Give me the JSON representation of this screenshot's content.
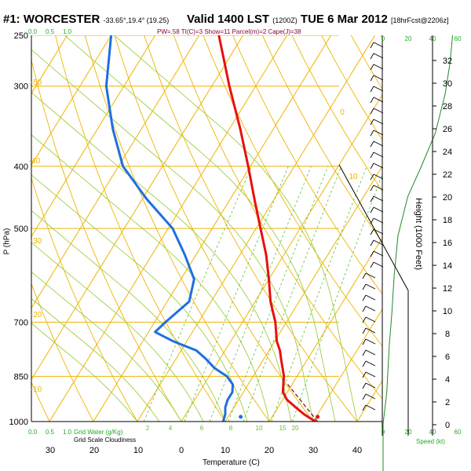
{
  "header": {
    "station": "#1: WORCESTER",
    "coords": "-33.65°,19.4° (19.25)",
    "valid": "Valid 1400 LST",
    "utc": "(1200Z)",
    "date": "TUE 6 Mar 2012",
    "run": "[18hrFcst@2206z]",
    "indices": "PW=.58 TI(C)=3 Show=11 Parcel(m)=2 Cape(J)=38"
  },
  "colors": {
    "isotherm": "#f0b400",
    "temp_curve": "#e81010",
    "dew_curve": "#1f6fe0",
    "mixing_ratio": "#5fbf2f",
    "adiabat": "#9fcf3f",
    "speed_curve": "#228b22",
    "cloudiness": "#22aa22"
  },
  "chart_data": {
    "type": "skew-t",
    "ylabel": "P (hPa)",
    "xlabel": "Temperature (C)",
    "right_ylabel": "Height (1000 Feet)",
    "speed_label": "Speed (kt)",
    "pressure_ticks": [
      250,
      300,
      400,
      500,
      700,
      850,
      1000
    ],
    "temperature_ticks": [
      30,
      20,
      10,
      0,
      10,
      20,
      30,
      40
    ],
    "height_ticks": [
      0,
      2,
      4,
      6,
      8,
      10,
      12,
      14,
      16,
      18,
      20,
      22,
      24,
      26,
      28,
      30,
      32
    ],
    "speed_ticks": [
      0,
      20,
      40,
      60
    ],
    "cloud_scale_labels": [
      "0.0",
      "0.5",
      "1.0"
    ],
    "mixing_ratio_legend": "Grid Water (g/Kg)",
    "cloud_legend": "Grid Scale Cloudiness",
    "isotherm_labels": [
      "-50",
      "-40",
      "-30",
      "-20",
      "-10",
      "0",
      "10"
    ],
    "mixing_ratio_labels": [
      "2",
      "4",
      "6",
      "8",
      "10",
      "15",
      "20"
    ],
    "temperature_profile": [
      {
        "p": 1000,
        "t": 30.5
      },
      {
        "p": 975,
        "t": 27
      },
      {
        "p": 950,
        "t": 24
      },
      {
        "p": 925,
        "t": 21
      },
      {
        "p": 900,
        "t": 19
      },
      {
        "p": 875,
        "t": 18
      },
      {
        "p": 850,
        "t": 17
      },
      {
        "p": 800,
        "t": 14
      },
      {
        "p": 775,
        "t": 12.5
      },
      {
        "p": 750,
        "t": 10.5
      },
      {
        "p": 700,
        "t": 7.5
      },
      {
        "p": 650,
        "t": 3.5
      },
      {
        "p": 600,
        "t": 0
      },
      {
        "p": 550,
        "t": -4
      },
      {
        "p": 500,
        "t": -9
      },
      {
        "p": 450,
        "t": -14.5
      },
      {
        "p": 400,
        "t": -20.5
      },
      {
        "p": 350,
        "t": -27.5
      },
      {
        "p": 300,
        "t": -36
      },
      {
        "p": 250,
        "t": -45.5
      }
    ],
    "dewpoint_profile": [
      {
        "p": 1000,
        "t": 9.5
      },
      {
        "p": 975,
        "t": 9
      },
      {
        "p": 950,
        "t": 8
      },
      {
        "p": 925,
        "t": 7.5
      },
      {
        "p": 900,
        "t": 7.5
      },
      {
        "p": 875,
        "t": 6.5
      },
      {
        "p": 850,
        "t": 4
      },
      {
        "p": 825,
        "t": 0
      },
      {
        "p": 800,
        "t": -3
      },
      {
        "p": 775,
        "t": -6.5
      },
      {
        "p": 750,
        "t": -13
      },
      {
        "p": 725,
        "t": -18.5
      },
      {
        "p": 700,
        "t": -17.5
      },
      {
        "p": 650,
        "t": -15
      },
      {
        "p": 600,
        "t": -17
      },
      {
        "p": 550,
        "t": -22.5
      },
      {
        "p": 500,
        "t": -29
      },
      {
        "p": 450,
        "t": -39
      },
      {
        "p": 400,
        "t": -49
      },
      {
        "p": 350,
        "t": -56.5
      },
      {
        "p": 300,
        "t": -64
      },
      {
        "p": 250,
        "t": -70
      }
    ],
    "surface_temperature": 31,
    "surface_dewpoint": 13.5
  }
}
